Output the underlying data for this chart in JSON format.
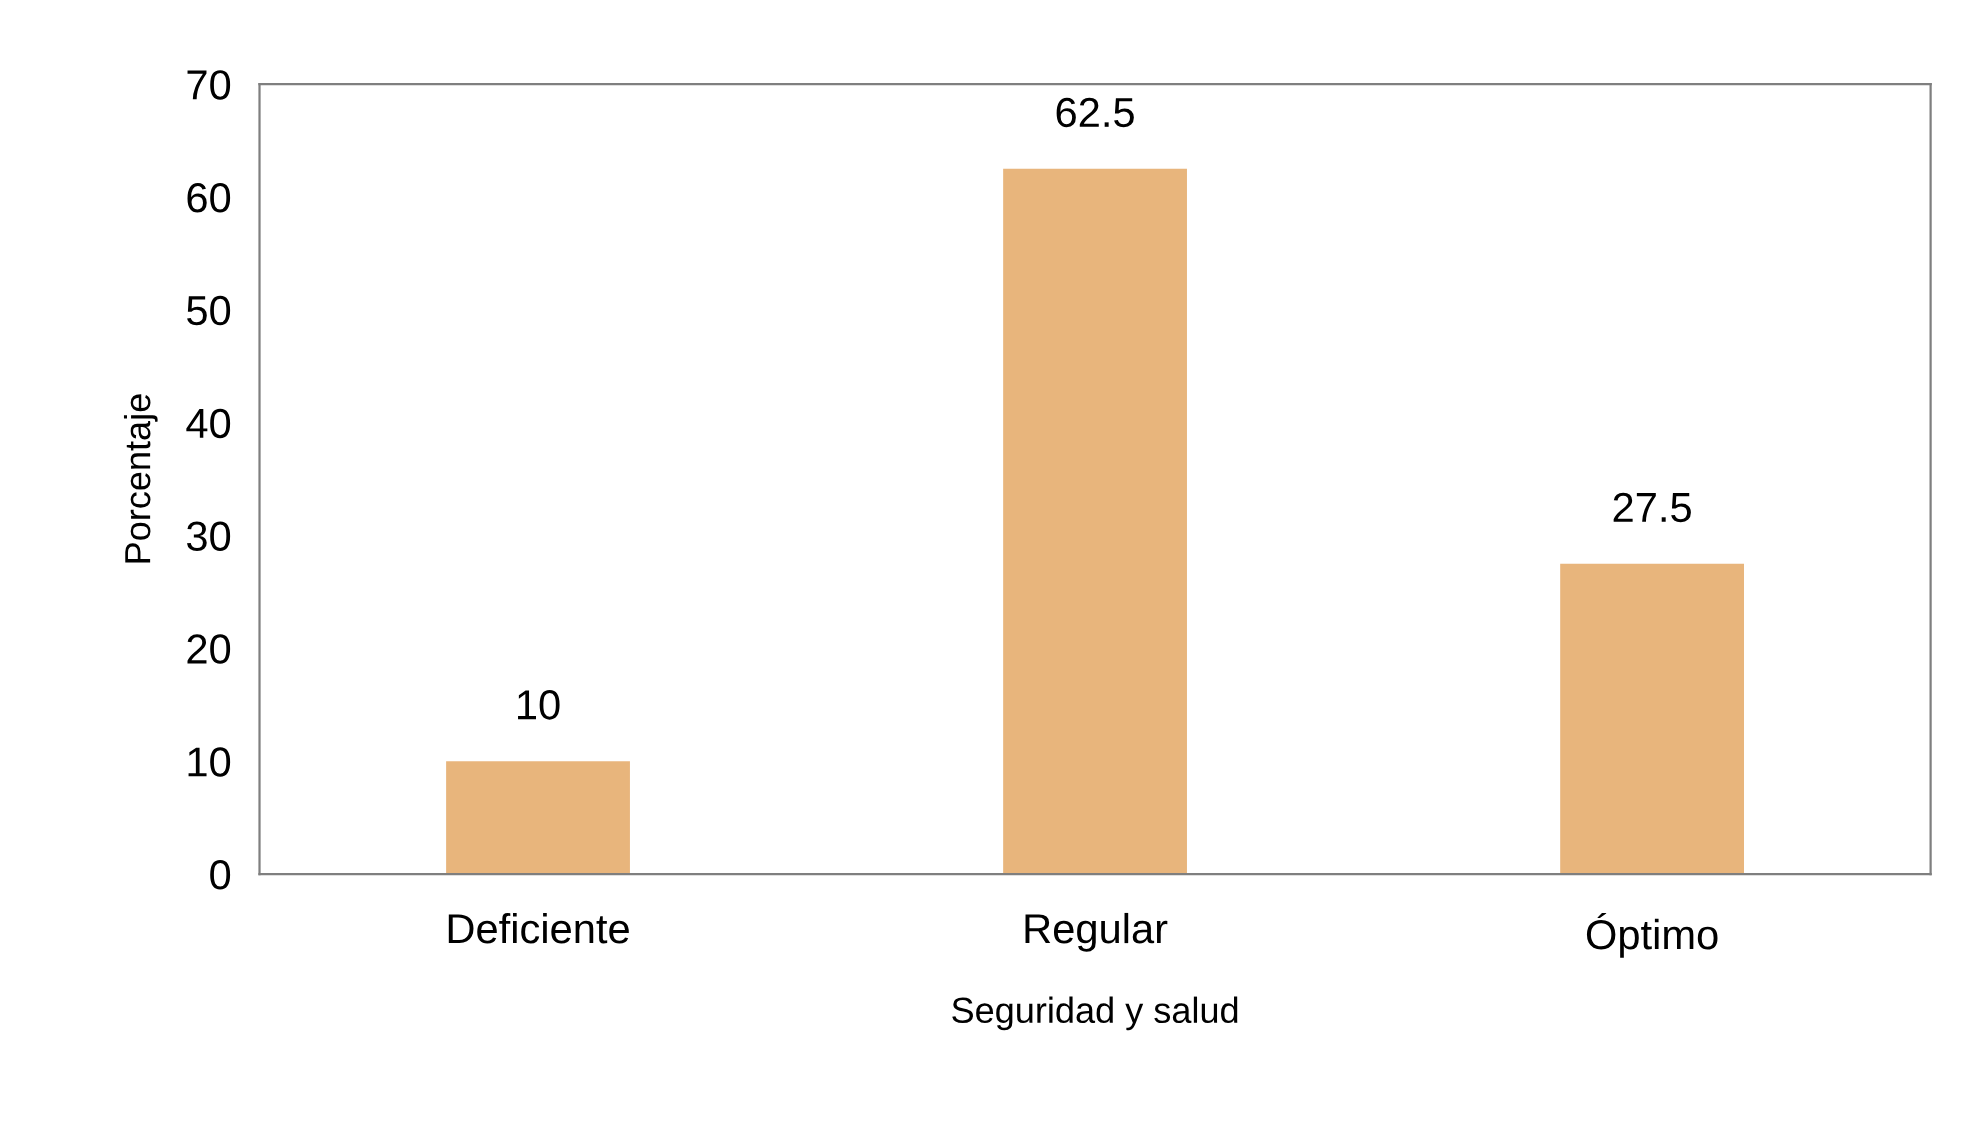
{
  "chart_data": {
    "type": "bar",
    "xlabel": "Seguridad y salud",
    "ylabel": "Porcentaje",
    "categories": [
      "Deficiente",
      "Regular",
      "Óptimo"
    ],
    "values": [
      10,
      62.5,
      27.5
    ],
    "color": "#e8b57c",
    "ylim": [
      0,
      70
    ],
    "yticks": [
      0,
      10,
      20,
      30,
      40,
      50,
      60,
      70
    ],
    "grid": false,
    "data_labels": true
  }
}
